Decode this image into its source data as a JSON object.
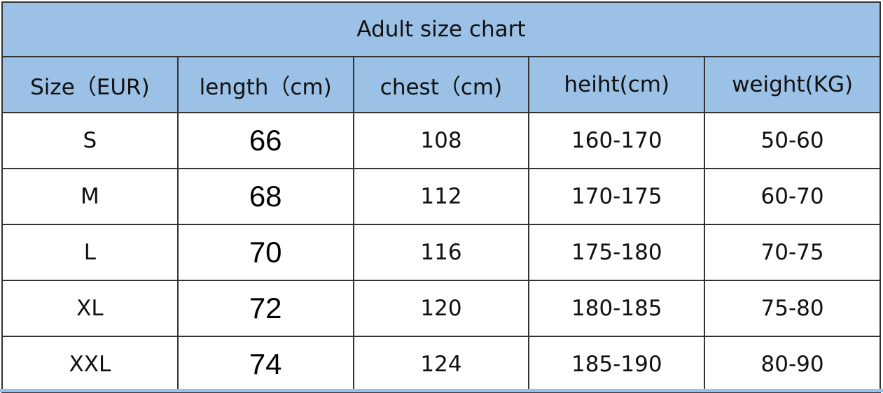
{
  "title": "Adult size chart",
  "headers": [
    "Size（EUR)",
    "length（cm)",
    "chest（cm)",
    "heiht(cm)",
    "weight(KG)"
  ],
  "rows": [
    [
      "S",
      "66",
      "108",
      "160-170",
      "50-60"
    ],
    [
      "M",
      "68",
      "112",
      "170-175",
      "60-70"
    ],
    [
      "L",
      "70",
      "116",
      "175-180",
      "70-75"
    ],
    [
      "XL",
      "72",
      "120",
      "180-185",
      "75-80"
    ],
    [
      "XXL",
      "74",
      "124",
      "185-190",
      "80-90"
    ]
  ],
  "colors": {
    "header_bg": "#9cc1e6",
    "border": "#333333"
  }
}
